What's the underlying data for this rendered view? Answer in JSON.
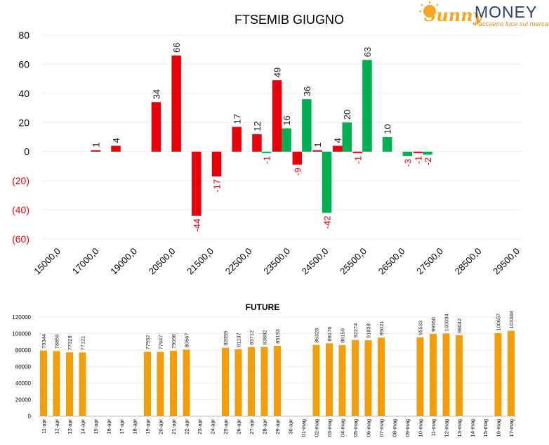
{
  "logo": {
    "brand_part1": "Sunny",
    "brand_part2": "MONEY",
    "tagline": "Facciamo luce sui mercati",
    "colors": {
      "sun": "#F5A623",
      "money": "#2B3E72",
      "tagline": "#D98A1A"
    }
  },
  "chart_data": [
    {
      "type": "bar",
      "title": "FTSEMIB GIUGNO",
      "x_tick_labels": [
        "15000,0",
        "17000,0",
        "19000,0",
        "20500,0",
        "21500,0",
        "22500,0",
        "23500,0",
        "24500,0",
        "25500,0",
        "26500,0",
        "27500,0",
        "28500,0",
        "29500,0"
      ],
      "y_tick_labels": [
        "80",
        "60",
        "40",
        "20",
        "0",
        "(20)",
        "(40)",
        "(60)"
      ],
      "ylim": [
        -60,
        80
      ],
      "grid": true,
      "colors": {
        "red": "#E8000B",
        "green": "#00B050",
        "label_neg": "#E8000B",
        "label_pos": "#222222"
      },
      "bars": [
        {
          "slot": 3,
          "side": "red",
          "value": 1,
          "label": "1"
        },
        {
          "slot": 4,
          "side": "red",
          "value": 4,
          "label": "4"
        },
        {
          "slot": 6,
          "side": "red",
          "value": 34,
          "label": "34"
        },
        {
          "slot": 7,
          "side": "red",
          "value": 66,
          "label": "66"
        },
        {
          "slot": 8,
          "side": "red",
          "value": -44,
          "label": "-44"
        },
        {
          "slot": 9,
          "side": "red",
          "value": -17,
          "label": "-17"
        },
        {
          "slot": 10,
          "side": "red",
          "value": 17,
          "label": "17"
        },
        {
          "slot": 11,
          "side": "red",
          "value": 12,
          "label": "12"
        },
        {
          "slot": 11,
          "side": "green",
          "value": -1,
          "label": "-1"
        },
        {
          "slot": 12,
          "side": "red",
          "value": 49,
          "label": "49"
        },
        {
          "slot": 12,
          "side": "green",
          "value": 16,
          "label": "16"
        },
        {
          "slot": 13,
          "side": "red",
          "value": -9,
          "label": "-9"
        },
        {
          "slot": 13,
          "side": "green",
          "value": 36,
          "label": "36"
        },
        {
          "slot": 14,
          "side": "red",
          "value": 1,
          "label": "1"
        },
        {
          "slot": 14,
          "side": "green",
          "value": -42,
          "label": "-42"
        },
        {
          "slot": 15,
          "side": "red",
          "value": 4,
          "label": "4"
        },
        {
          "slot": 15,
          "side": "green",
          "value": 20,
          "label": "20"
        },
        {
          "slot": 16,
          "side": "red",
          "value": -1,
          "label": "-1"
        },
        {
          "slot": 16,
          "side": "green",
          "value": 63,
          "label": "63"
        },
        {
          "slot": 17,
          "side": "green",
          "value": 10,
          "label": "10"
        },
        {
          "slot": 18,
          "side": "green",
          "value": -3,
          "label": "-3"
        },
        {
          "slot": 19,
          "side": "red",
          "value": -1,
          "label": "-1"
        },
        {
          "slot": 19,
          "side": "green",
          "value": -2,
          "label": "-2"
        }
      ]
    },
    {
      "type": "bar",
      "title": "FUTURE",
      "ylim": [
        0,
        120000
      ],
      "y_tick_labels": [
        "120000",
        "100000",
        "80000",
        "60000",
        "40000",
        "20000",
        "0"
      ],
      "color": "#F59E0B",
      "categories": [
        "11-apr",
        "12-apr",
        "13-apr",
        "14-apr",
        "15-apr",
        "16-apr",
        "17-apr",
        "18-apr",
        "19-apr",
        "20-apr",
        "21-apr",
        "22-apr",
        "23-apr",
        "24-apr",
        "25-apr",
        "26-apr",
        "27-apr",
        "28-apr",
        "29-apr",
        "30-apr",
        "01-mag",
        "02-mag",
        "03-mag",
        "04-mag",
        "05-mag",
        "06-mag",
        "07-mag",
        "08-mag",
        "09-mag",
        "10-mag",
        "11-mag",
        "12-mag",
        "13-mag",
        "14-mag",
        "15-mag",
        "16-mag",
        "17-mag"
      ],
      "values": [
        79344,
        78859,
        77328,
        77121,
        null,
        null,
        null,
        null,
        77952,
        77947,
        79096,
        80567,
        null,
        null,
        82859,
        81137,
        83712,
        83882,
        85193,
        null,
        null,
        86328,
        88176,
        86159,
        92274,
        91838,
        95021,
        null,
        null,
        95533,
        99550,
        100094,
        98042,
        null,
        null,
        100657,
        103348
      ]
    }
  ]
}
